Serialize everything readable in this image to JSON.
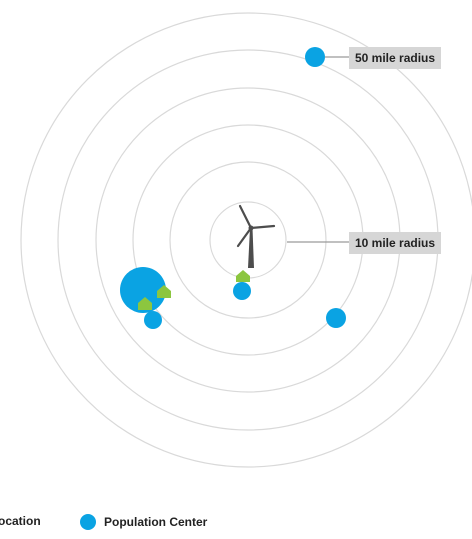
{
  "labels": {
    "outer_radius": "50 mile radius",
    "inner_radius": "10 mile radius"
  },
  "legend": {
    "partial_label": "ocation",
    "population_center": "Population Center"
  },
  "colors": {
    "ring": "#d9d9d9",
    "population": "#0aa3e3",
    "home": "#8cc63f",
    "turbine": "#4d4d4d",
    "callout": "#d6d6d6"
  },
  "icons": [
    "wind-turbine-icon",
    "home-icon",
    "population-dot-icon"
  ]
}
